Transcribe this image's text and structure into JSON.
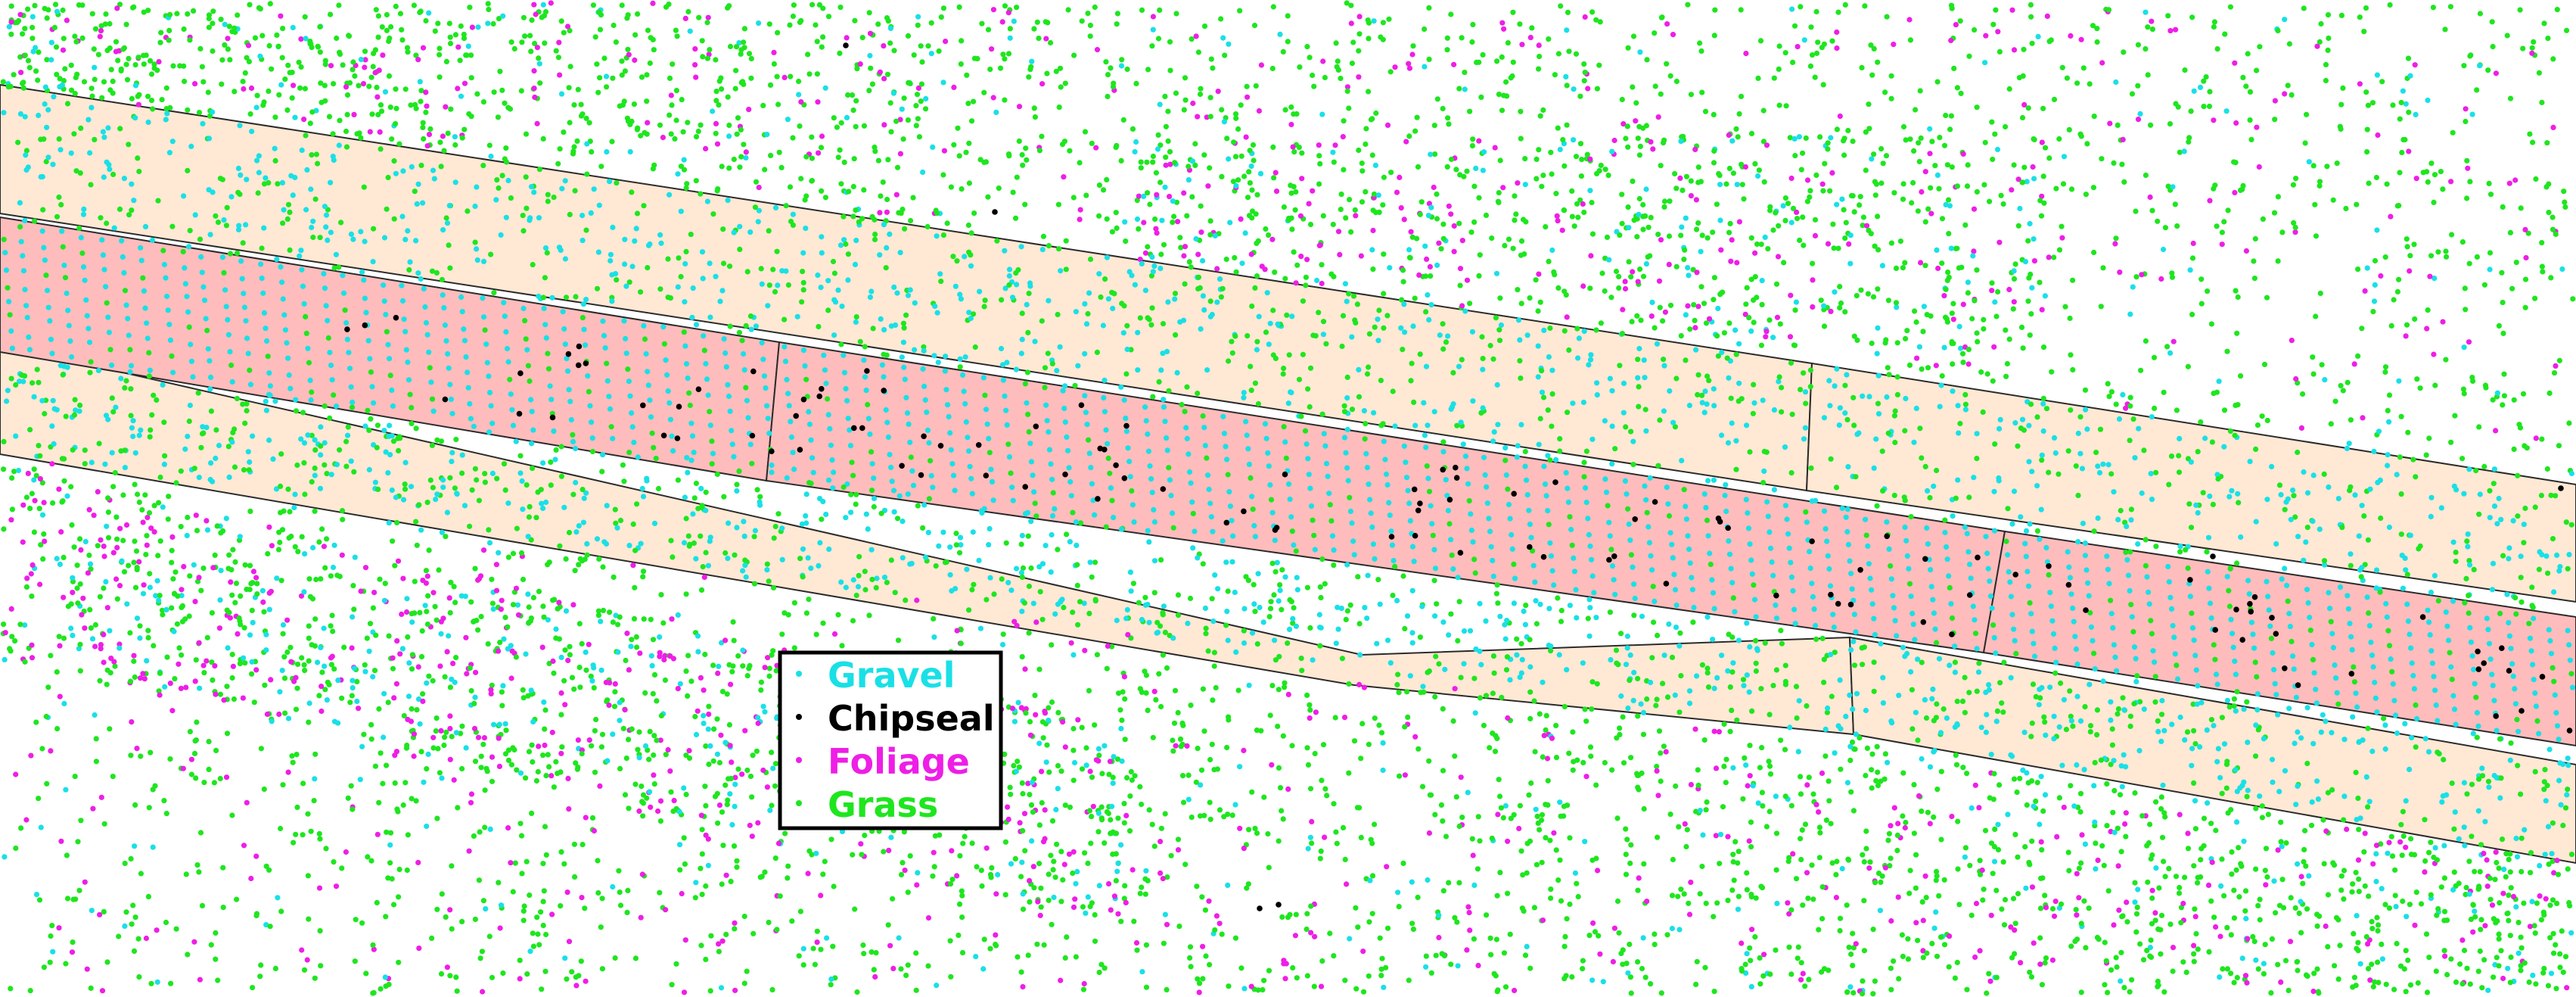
{
  "legend": {
    "items": [
      {
        "label": "Gravel",
        "color": "#19e0e6"
      },
      {
        "label": "Chipseal",
        "color": "#000000"
      },
      {
        "label": "Foliage",
        "color": "#ee1ee6"
      },
      {
        "label": "Grass",
        "color": "#1ee61e"
      }
    ]
  },
  "colors": {
    "road_surface": "#ffbcbc",
    "road_shoulder": "#ffe8d4",
    "segment_outline": "#2b2b2b",
    "background": "#ffffff",
    "legend_border": "#000000"
  }
}
